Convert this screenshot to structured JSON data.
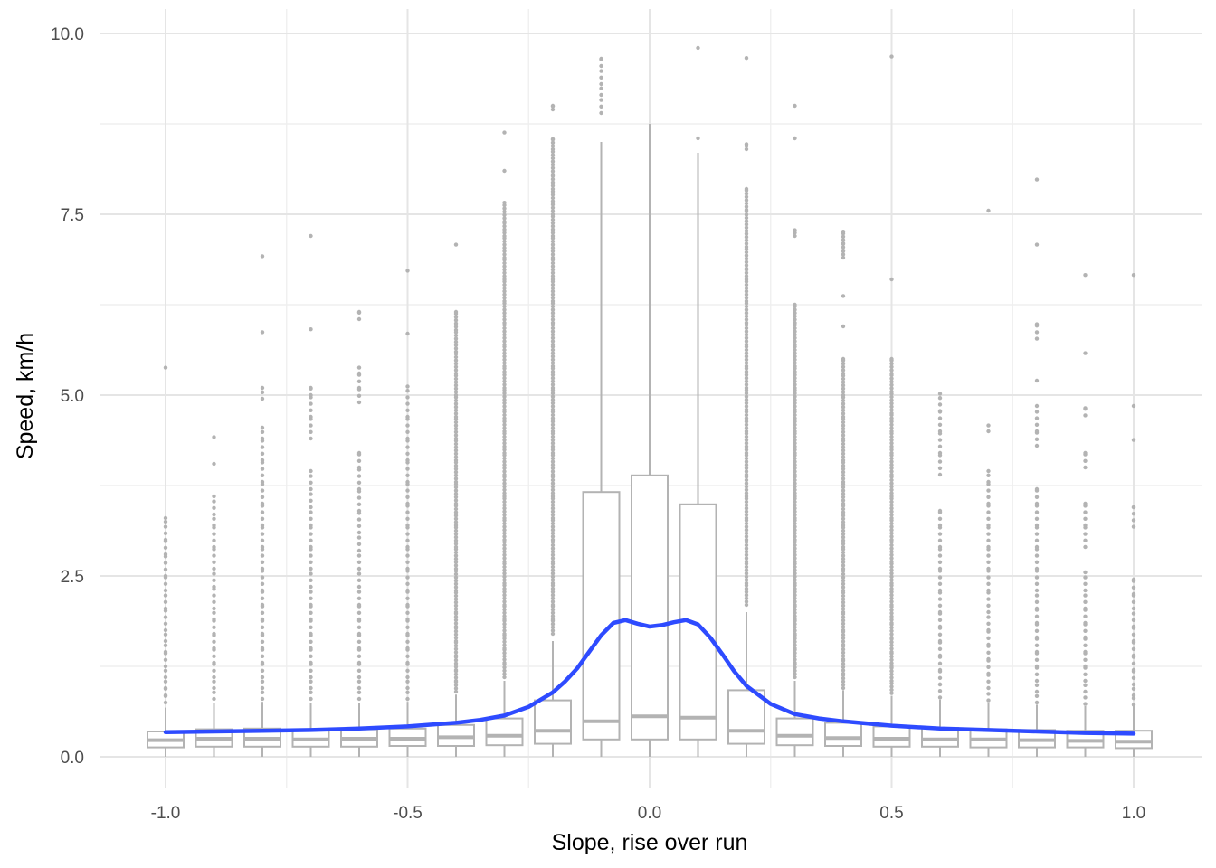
{
  "chart_data": {
    "type": "box",
    "xlabel": "Slope, rise over run",
    "ylabel": "Speed, km/h",
    "xlim": [
      -1.1,
      1.1
    ],
    "ylim": [
      -0.45,
      10.3
    ],
    "x_ticks": [
      -1.0,
      -0.5,
      0.0,
      0.5,
      1.0
    ],
    "x_tick_labels": [
      "-1.0",
      "-0.5",
      "0.0",
      "0.5",
      "1.0"
    ],
    "y_ticks": [
      0.0,
      2.5,
      5.0,
      7.5,
      10.0
    ],
    "y_tick_labels": [
      "0.0",
      "2.5",
      "5.0",
      "7.5",
      "10.0"
    ],
    "grid": true,
    "colors": {
      "box": "#b3b3b3",
      "outlier": "#b3b3b3",
      "smooth": "#2e4bff",
      "grid": "#ebebeb"
    },
    "boxes": [
      {
        "x": -1.0,
        "q1": 0.13,
        "median": 0.23,
        "q3": 0.35,
        "whisker_low": 0.0,
        "whisker_high": 0.68
      },
      {
        "x": -0.9,
        "q1": 0.14,
        "median": 0.25,
        "q3": 0.38,
        "whisker_low": 0.0,
        "whisker_high": 0.74
      },
      {
        "x": -0.8,
        "q1": 0.14,
        "median": 0.25,
        "q3": 0.39,
        "whisker_low": 0.0,
        "whisker_high": 0.76
      },
      {
        "x": -0.7,
        "q1": 0.14,
        "median": 0.24,
        "q3": 0.38,
        "whisker_low": 0.0,
        "whisker_high": 0.74
      },
      {
        "x": -0.6,
        "q1": 0.14,
        "median": 0.25,
        "q3": 0.38,
        "whisker_low": 0.0,
        "whisker_high": 0.75
      },
      {
        "x": -0.5,
        "q1": 0.15,
        "median": 0.25,
        "q3": 0.39,
        "whisker_low": 0.0,
        "whisker_high": 0.76
      },
      {
        "x": -0.4,
        "q1": 0.15,
        "median": 0.27,
        "q3": 0.44,
        "whisker_low": 0.0,
        "whisker_high": 0.86
      },
      {
        "x": -0.3,
        "q1": 0.16,
        "median": 0.29,
        "q3": 0.53,
        "whisker_low": 0.0,
        "whisker_high": 1.05
      },
      {
        "x": -0.2,
        "q1": 0.18,
        "median": 0.36,
        "q3": 0.78,
        "whisker_low": 0.0,
        "whisker_high": 1.6
      },
      {
        "x": -0.1,
        "q1": 0.24,
        "median": 0.49,
        "q3": 3.66,
        "whisker_low": 0.0,
        "whisker_high": 8.5
      },
      {
        "x": 0.0,
        "q1": 0.24,
        "median": 0.56,
        "q3": 3.89,
        "whisker_low": 0.0,
        "whisker_high": 8.75
      },
      {
        "x": 0.1,
        "q1": 0.24,
        "median": 0.54,
        "q3": 3.49,
        "whisker_low": 0.0,
        "whisker_high": 8.35
      },
      {
        "x": 0.2,
        "q1": 0.18,
        "median": 0.36,
        "q3": 0.92,
        "whisker_low": 0.0,
        "whisker_high": 2.0
      },
      {
        "x": 0.3,
        "q1": 0.16,
        "median": 0.29,
        "q3": 0.53,
        "whisker_low": 0.0,
        "whisker_high": 1.05
      },
      {
        "x": 0.4,
        "q1": 0.15,
        "median": 0.26,
        "q3": 0.47,
        "whisker_low": 0.0,
        "whisker_high": 0.92
      },
      {
        "x": 0.5,
        "q1": 0.14,
        "median": 0.25,
        "q3": 0.42,
        "whisker_low": 0.0,
        "whisker_high": 0.84
      },
      {
        "x": 0.6,
        "q1": 0.14,
        "median": 0.24,
        "q3": 0.4,
        "whisker_low": 0.0,
        "whisker_high": 0.79
      },
      {
        "x": 0.7,
        "q1": 0.13,
        "median": 0.24,
        "q3": 0.38,
        "whisker_low": 0.0,
        "whisker_high": 0.74
      },
      {
        "x": 0.8,
        "q1": 0.13,
        "median": 0.23,
        "q3": 0.37,
        "whisker_low": 0.0,
        "whisker_high": 0.72
      },
      {
        "x": 0.9,
        "q1": 0.13,
        "median": 0.22,
        "q3": 0.36,
        "whisker_low": 0.0,
        "whisker_high": 0.7
      },
      {
        "x": 1.0,
        "q1": 0.12,
        "median": 0.21,
        "q3": 0.36,
        "whisker_low": 0.0,
        "whisker_high": 0.7
      }
    ],
    "outliers": [
      {
        "x": -1.0,
        "values": [
          0.75,
          0.85,
          0.95,
          1.1,
          1.25,
          1.45,
          1.6,
          1.75,
          2.05,
          2.3,
          2.5,
          2.8,
          3.0,
          3.25,
          3.3,
          5.38
        ]
      },
      {
        "x": -0.9,
        "values": [
          0.8,
          0.95,
          1.1,
          1.3,
          1.5,
          1.7,
          1.9,
          2.05,
          2.35,
          2.6,
          2.9,
          3.2,
          3.35,
          3.6,
          4.05,
          4.42
        ]
      },
      {
        "x": -0.8,
        "values": [
          0.8,
          0.95,
          1.1,
          1.3,
          1.5,
          1.7,
          1.9,
          2.1,
          2.3,
          2.6,
          2.9,
          3.2,
          3.5,
          3.8,
          4.1,
          4.4,
          4.55,
          4.95,
          5.1,
          5.87,
          6.92
        ]
      },
      {
        "x": -0.7,
        "values": [
          0.8,
          0.95,
          1.1,
          1.3,
          1.5,
          1.7,
          1.9,
          2.1,
          2.35,
          2.6,
          2.9,
          3.2,
          3.45,
          3.7,
          3.95,
          4.4,
          4.7,
          5.0,
          5.1,
          5.91,
          7.2
        ]
      },
      {
        "x": -0.6,
        "values": [
          0.8,
          0.95,
          1.1,
          1.3,
          1.5,
          1.7,
          1.9,
          2.1,
          2.35,
          2.6,
          2.85,
          3.1,
          3.4,
          3.7,
          4.0,
          4.2,
          4.9,
          5.1,
          5.3,
          5.38,
          6.05,
          6.15
        ]
      },
      {
        "x": -0.5,
        "values": [
          0.8,
          0.95,
          1.1,
          1.3,
          1.5,
          1.7,
          1.9,
          2.1,
          2.3,
          2.6,
          2.9,
          3.2,
          3.5,
          3.8,
          4.1,
          4.4,
          4.7,
          4.88,
          5.12,
          5.85,
          6.72
        ]
      },
      {
        "x": -0.4,
        "values": [
          0.9,
          1.05,
          1.2,
          1.4,
          1.6,
          1.8,
          2.0,
          2.3,
          2.6,
          2.9,
          3.2,
          3.5,
          3.8,
          4.1,
          4.4,
          4.7,
          5.0,
          5.3,
          5.6,
          5.9,
          6.15,
          7.08
        ]
      },
      {
        "x": -0.3,
        "values": [
          1.1,
          1.3,
          1.5,
          1.7,
          1.9,
          2.1,
          2.4,
          2.7,
          3.0,
          3.3,
          3.6,
          3.9,
          4.2,
          4.5,
          4.8,
          5.1,
          5.4,
          5.7,
          6.0,
          6.3,
          6.6,
          6.9,
          7.2,
          7.4,
          7.66,
          8.1,
          8.63
        ]
      },
      {
        "x": -0.2,
        "values": [
          1.7,
          1.9,
          2.1,
          2.4,
          2.7,
          3.0,
          3.3,
          3.6,
          3.9,
          4.2,
          4.5,
          4.8,
          5.1,
          5.4,
          5.7,
          6.0,
          6.3,
          6.6,
          6.9,
          7.2,
          7.5,
          7.85,
          8.05,
          8.4,
          8.54,
          8.95,
          9.0
        ]
      },
      {
        "x": -0.1,
        "values": [
          8.9,
          9.15,
          9.3,
          9.55,
          9.65
        ]
      },
      {
        "x": 0.1,
        "values": [
          8.55,
          9.8
        ]
      },
      {
        "x": 0.2,
        "values": [
          2.1,
          2.4,
          2.7,
          3.0,
          3.3,
          3.6,
          3.9,
          4.2,
          4.5,
          4.8,
          5.1,
          5.4,
          5.7,
          6.0,
          6.3,
          6.6,
          6.75,
          7.05,
          7.27,
          7.56,
          7.85,
          8.4,
          8.47,
          9.66
        ]
      },
      {
        "x": 0.3,
        "values": [
          1.1,
          1.3,
          1.5,
          1.7,
          1.9,
          2.1,
          2.4,
          2.7,
          3.0,
          3.3,
          3.6,
          3.9,
          4.2,
          4.5,
          4.8,
          5.1,
          5.4,
          5.7,
          6.0,
          6.25,
          7.2,
          7.28,
          8.55,
          9.0
        ]
      },
      {
        "x": 0.4,
        "values": [
          0.95,
          1.15,
          1.35,
          1.55,
          1.75,
          2.0,
          2.3,
          2.6,
          2.9,
          3.2,
          3.5,
          3.8,
          4.1,
          4.4,
          4.7,
          5.0,
          5.3,
          5.5,
          5.95,
          6.37,
          6.9,
          7.0,
          7.1,
          7.26
        ]
      },
      {
        "x": 0.5,
        "values": [
          0.88,
          1.05,
          1.25,
          1.45,
          1.65,
          1.85,
          2.1,
          2.4,
          2.7,
          3.0,
          3.3,
          3.6,
          3.9,
          4.2,
          4.5,
          4.75,
          5.05,
          5.3,
          5.5,
          6.6,
          9.68
        ]
      },
      {
        "x": 0.6,
        "values": [
          0.82,
          1.0,
          1.2,
          1.4,
          1.6,
          1.8,
          2.0,
          2.3,
          2.6,
          2.9,
          3.2,
          3.4,
          3.9,
          4.2,
          4.5,
          4.78,
          5.02
        ]
      },
      {
        "x": 0.7,
        "values": [
          0.78,
          0.95,
          1.15,
          1.35,
          1.55,
          1.75,
          2.0,
          2.3,
          2.6,
          2.9,
          3.2,
          3.5,
          3.8,
          3.95,
          4.5,
          4.58,
          7.55
        ]
      },
      {
        "x": 0.8,
        "values": [
          0.75,
          0.9,
          1.05,
          1.25,
          1.45,
          1.65,
          1.85,
          2.05,
          2.3,
          2.6,
          2.9,
          3.2,
          3.5,
          3.7,
          4.3,
          4.5,
          4.85,
          5.2,
          5.78,
          5.98,
          7.08,
          7.98
        ]
      },
      {
        "x": 0.9,
        "values": [
          0.73,
          0.9,
          1.05,
          1.25,
          1.45,
          1.65,
          1.85,
          2.05,
          2.3,
          2.55,
          2.9,
          3.2,
          3.5,
          4.0,
          4.2,
          4.72,
          4.82,
          5.58,
          6.66
        ]
      },
      {
        "x": 1.0,
        "values": [
          0.72,
          0.85,
          1.0,
          1.2,
          1.4,
          1.6,
          1.8,
          2.05,
          2.25,
          2.45,
          3.18,
          3.45,
          4.38,
          4.85,
          6.66
        ]
      }
    ],
    "smooth_line": {
      "x": [
        -1.0,
        -0.9,
        -0.8,
        -0.7,
        -0.6,
        -0.5,
        -0.4,
        -0.35,
        -0.3,
        -0.25,
        -0.2,
        -0.175,
        -0.15,
        -0.125,
        -0.1,
        -0.075,
        -0.05,
        -0.025,
        0.0,
        0.025,
        0.05,
        0.075,
        0.1,
        0.125,
        0.15,
        0.175,
        0.2,
        0.25,
        0.3,
        0.35,
        0.4,
        0.5,
        0.6,
        0.7,
        0.8,
        0.9,
        1.0
      ],
      "y": [
        0.34,
        0.35,
        0.36,
        0.37,
        0.39,
        0.42,
        0.47,
        0.51,
        0.57,
        0.69,
        0.89,
        1.04,
        1.22,
        1.45,
        1.68,
        1.85,
        1.89,
        1.84,
        1.8,
        1.82,
        1.86,
        1.89,
        1.83,
        1.65,
        1.42,
        1.18,
        0.98,
        0.73,
        0.59,
        0.53,
        0.49,
        0.43,
        0.39,
        0.37,
        0.35,
        0.33,
        0.32
      ]
    }
  }
}
